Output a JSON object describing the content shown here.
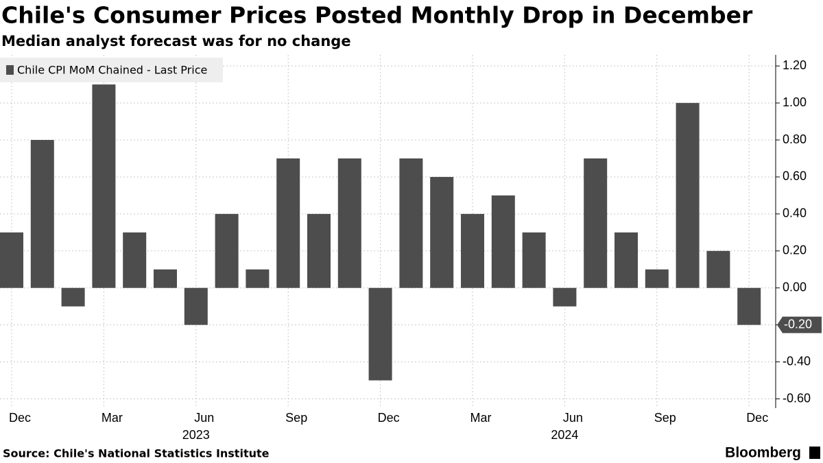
{
  "chart_data": {
    "type": "bar",
    "title": "Chile's Consumer Prices Posted Monthly Drop in December",
    "subtitle": "Median analyst forecast was for no change",
    "source": "Source: Chile's National Statistics Institute",
    "brand": "Bloomberg",
    "categories": [
      "Dec",
      null,
      null,
      "Mar",
      null,
      null,
      "Jun",
      null,
      null,
      "Sep",
      null,
      null,
      "Dec",
      null,
      null,
      "Mar",
      null,
      null,
      "Jun",
      null,
      null,
      "Sep",
      null,
      null,
      "Dec"
    ],
    "years": [
      null,
      null,
      null,
      null,
      null,
      null,
      "2023",
      null,
      null,
      null,
      null,
      null,
      null,
      null,
      null,
      null,
      null,
      null,
      "2024",
      null,
      null,
      null,
      null,
      null,
      null
    ],
    "series": [
      {
        "name": "Chile CPI MoM Chained - Last Price",
        "color": "#4d4d4d",
        "values": [
          0.3,
          0.8,
          -0.1,
          1.1,
          0.3,
          0.1,
          -0.2,
          0.4,
          0.1,
          0.7,
          0.4,
          0.7,
          -0.5,
          0.7,
          0.6,
          0.4,
          0.5,
          0.3,
          -0.1,
          0.7,
          0.3,
          0.1,
          1.0,
          0.2,
          -0.2
        ]
      }
    ],
    "last_value_label": "-0.20",
    "ylim": [
      -0.65,
      1.26
    ],
    "yticks": [
      {
        "value": -0.6,
        "label": "-0.60"
      },
      {
        "value": -0.4,
        "label": "-0.40"
      },
      {
        "value": -0.2,
        "label": "-0.20"
      },
      {
        "value": 0,
        "label": "0.00"
      },
      {
        "value": 0.2,
        "label": "0.20"
      },
      {
        "value": 0.4,
        "label": "0.40"
      },
      {
        "value": 0.6,
        "label": "0.60"
      },
      {
        "value": 0.8,
        "label": "0.80"
      },
      {
        "value": 1.0,
        "label": "1.00"
      },
      {
        "value": 1.2,
        "label": "1.20"
      }
    ],
    "grid": true,
    "y_axis_side": "right",
    "legend": "top-left"
  }
}
